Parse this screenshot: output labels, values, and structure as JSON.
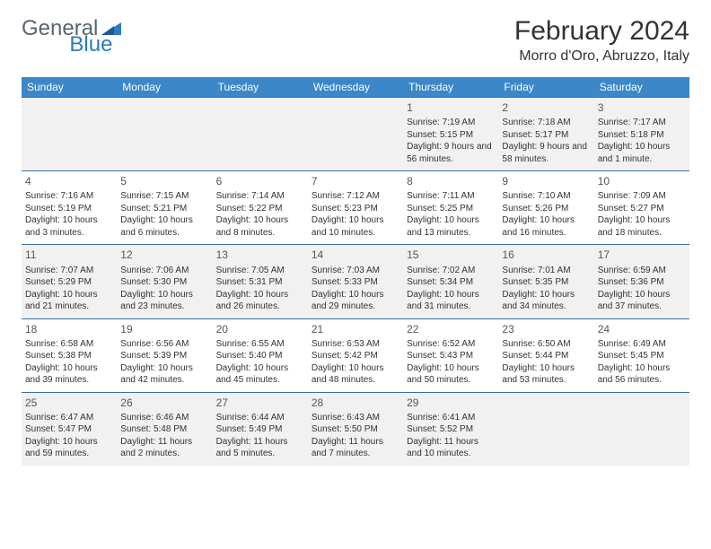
{
  "logo": {
    "word1": "General",
    "word2": "Blue"
  },
  "title": "February 2024",
  "location": "Morro d'Oro, Abruzzo, Italy",
  "colors": {
    "header_bg": "#3b87c8",
    "header_text": "#ffffff",
    "alt_row_bg": "#f1f1f1",
    "row_border": "#3b6fa0",
    "logo_gray": "#5a6570",
    "logo_blue": "#2b7bbf"
  },
  "fonts": {
    "title_size": 30,
    "location_size": 16,
    "dow_size": 12,
    "daynum_size": 12,
    "body_size": 10
  },
  "dow": [
    "Sunday",
    "Monday",
    "Tuesday",
    "Wednesday",
    "Thursday",
    "Friday",
    "Saturday"
  ],
  "weeks": [
    [
      null,
      null,
      null,
      null,
      {
        "n": "1",
        "sr": "Sunrise: 7:19 AM",
        "ss": "Sunset: 5:15 PM",
        "dl": "Daylight: 9 hours and 56 minutes."
      },
      {
        "n": "2",
        "sr": "Sunrise: 7:18 AM",
        "ss": "Sunset: 5:17 PM",
        "dl": "Daylight: 9 hours and 58 minutes."
      },
      {
        "n": "3",
        "sr": "Sunrise: 7:17 AM",
        "ss": "Sunset: 5:18 PM",
        "dl": "Daylight: 10 hours and 1 minute."
      }
    ],
    [
      {
        "n": "4",
        "sr": "Sunrise: 7:16 AM",
        "ss": "Sunset: 5:19 PM",
        "dl": "Daylight: 10 hours and 3 minutes."
      },
      {
        "n": "5",
        "sr": "Sunrise: 7:15 AM",
        "ss": "Sunset: 5:21 PM",
        "dl": "Daylight: 10 hours and 6 minutes."
      },
      {
        "n": "6",
        "sr": "Sunrise: 7:14 AM",
        "ss": "Sunset: 5:22 PM",
        "dl": "Daylight: 10 hours and 8 minutes."
      },
      {
        "n": "7",
        "sr": "Sunrise: 7:12 AM",
        "ss": "Sunset: 5:23 PM",
        "dl": "Daylight: 10 hours and 10 minutes."
      },
      {
        "n": "8",
        "sr": "Sunrise: 7:11 AM",
        "ss": "Sunset: 5:25 PM",
        "dl": "Daylight: 10 hours and 13 minutes."
      },
      {
        "n": "9",
        "sr": "Sunrise: 7:10 AM",
        "ss": "Sunset: 5:26 PM",
        "dl": "Daylight: 10 hours and 16 minutes."
      },
      {
        "n": "10",
        "sr": "Sunrise: 7:09 AM",
        "ss": "Sunset: 5:27 PM",
        "dl": "Daylight: 10 hours and 18 minutes."
      }
    ],
    [
      {
        "n": "11",
        "sr": "Sunrise: 7:07 AM",
        "ss": "Sunset: 5:29 PM",
        "dl": "Daylight: 10 hours and 21 minutes."
      },
      {
        "n": "12",
        "sr": "Sunrise: 7:06 AM",
        "ss": "Sunset: 5:30 PM",
        "dl": "Daylight: 10 hours and 23 minutes."
      },
      {
        "n": "13",
        "sr": "Sunrise: 7:05 AM",
        "ss": "Sunset: 5:31 PM",
        "dl": "Daylight: 10 hours and 26 minutes."
      },
      {
        "n": "14",
        "sr": "Sunrise: 7:03 AM",
        "ss": "Sunset: 5:33 PM",
        "dl": "Daylight: 10 hours and 29 minutes."
      },
      {
        "n": "15",
        "sr": "Sunrise: 7:02 AM",
        "ss": "Sunset: 5:34 PM",
        "dl": "Daylight: 10 hours and 31 minutes."
      },
      {
        "n": "16",
        "sr": "Sunrise: 7:01 AM",
        "ss": "Sunset: 5:35 PM",
        "dl": "Daylight: 10 hours and 34 minutes."
      },
      {
        "n": "17",
        "sr": "Sunrise: 6:59 AM",
        "ss": "Sunset: 5:36 PM",
        "dl": "Daylight: 10 hours and 37 minutes."
      }
    ],
    [
      {
        "n": "18",
        "sr": "Sunrise: 6:58 AM",
        "ss": "Sunset: 5:38 PM",
        "dl": "Daylight: 10 hours and 39 minutes."
      },
      {
        "n": "19",
        "sr": "Sunrise: 6:56 AM",
        "ss": "Sunset: 5:39 PM",
        "dl": "Daylight: 10 hours and 42 minutes."
      },
      {
        "n": "20",
        "sr": "Sunrise: 6:55 AM",
        "ss": "Sunset: 5:40 PM",
        "dl": "Daylight: 10 hours and 45 minutes."
      },
      {
        "n": "21",
        "sr": "Sunrise: 6:53 AM",
        "ss": "Sunset: 5:42 PM",
        "dl": "Daylight: 10 hours and 48 minutes."
      },
      {
        "n": "22",
        "sr": "Sunrise: 6:52 AM",
        "ss": "Sunset: 5:43 PM",
        "dl": "Daylight: 10 hours and 50 minutes."
      },
      {
        "n": "23",
        "sr": "Sunrise: 6:50 AM",
        "ss": "Sunset: 5:44 PM",
        "dl": "Daylight: 10 hours and 53 minutes."
      },
      {
        "n": "24",
        "sr": "Sunrise: 6:49 AM",
        "ss": "Sunset: 5:45 PM",
        "dl": "Daylight: 10 hours and 56 minutes."
      }
    ],
    [
      {
        "n": "25",
        "sr": "Sunrise: 6:47 AM",
        "ss": "Sunset: 5:47 PM",
        "dl": "Daylight: 10 hours and 59 minutes."
      },
      {
        "n": "26",
        "sr": "Sunrise: 6:46 AM",
        "ss": "Sunset: 5:48 PM",
        "dl": "Daylight: 11 hours and 2 minutes."
      },
      {
        "n": "27",
        "sr": "Sunrise: 6:44 AM",
        "ss": "Sunset: 5:49 PM",
        "dl": "Daylight: 11 hours and 5 minutes."
      },
      {
        "n": "28",
        "sr": "Sunrise: 6:43 AM",
        "ss": "Sunset: 5:50 PM",
        "dl": "Daylight: 11 hours and 7 minutes."
      },
      {
        "n": "29",
        "sr": "Sunrise: 6:41 AM",
        "ss": "Sunset: 5:52 PM",
        "dl": "Daylight: 11 hours and 10 minutes."
      },
      null,
      null
    ]
  ]
}
